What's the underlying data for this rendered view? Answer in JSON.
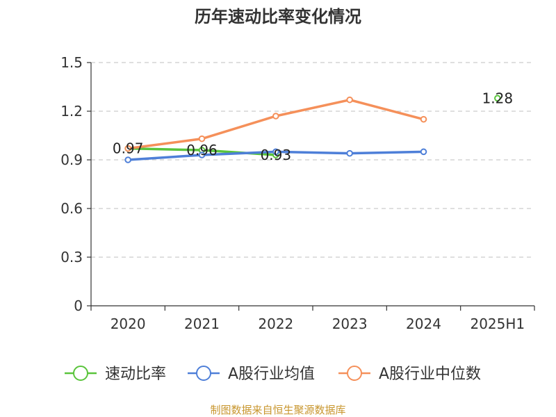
{
  "chart_data": {
    "type": "line",
    "title": "历年速动比率变化情况",
    "categories": [
      "2020",
      "2021",
      "2022",
      "2023",
      "2024",
      "2025H1"
    ],
    "ylim": [
      0,
      1.5
    ],
    "yticks": [
      "0",
      "0.3",
      "0.6",
      "0.9",
      "1.2",
      "1.5"
    ],
    "ytick_values": [
      0,
      0.3,
      0.6,
      0.9,
      1.2,
      1.5
    ],
    "grid": true,
    "legend_position": "bottom",
    "series": [
      {
        "name": "速动比率",
        "color": "#5ac43c",
        "values": [
          0.97,
          0.96,
          0.93,
          null,
          null,
          1.28
        ],
        "labels": [
          "0.97",
          "0.96",
          "0.93",
          "",
          "",
          "1.28"
        ]
      },
      {
        "name": "A股行业均值",
        "color": "#4e7fd8",
        "values": [
          0.9,
          0.93,
          0.95,
          0.94,
          0.95,
          null
        ]
      },
      {
        "name": "A股行业中位数",
        "color": "#f5905a",
        "values": [
          0.97,
          1.03,
          1.17,
          1.27,
          1.15,
          null
        ]
      }
    ]
  },
  "footer": {
    "source": "制图数据来自恒生聚源数据库"
  }
}
